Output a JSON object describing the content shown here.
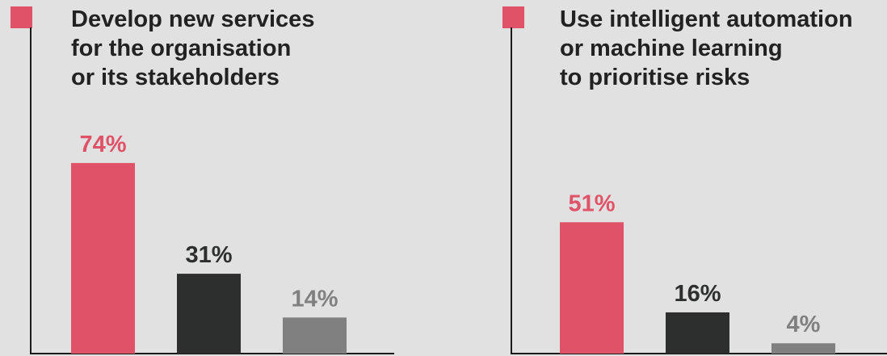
{
  "colors": {
    "background": "#e1e1e1",
    "accent": "#e05268",
    "dark": "#2d2e2e",
    "grey": "#808080",
    "title": "#222222",
    "axis": "#1a1a1a"
  },
  "chart_data": [
    {
      "type": "bar",
      "title": "Develop new services\nfor the organisation\nor its stakeholders",
      "values": [
        74,
        31,
        14
      ],
      "labels": [
        "74%",
        "31%",
        "14%"
      ],
      "ylim": [
        0,
        100
      ],
      "grid": false
    },
    {
      "type": "bar",
      "title": "Use intelligent automation\nor machine learning\nto prioritise risks",
      "values": [
        51,
        16,
        4
      ],
      "labels": [
        "51%",
        "16%",
        "4%"
      ],
      "ylim": [
        0,
        100
      ],
      "grid": false
    }
  ]
}
